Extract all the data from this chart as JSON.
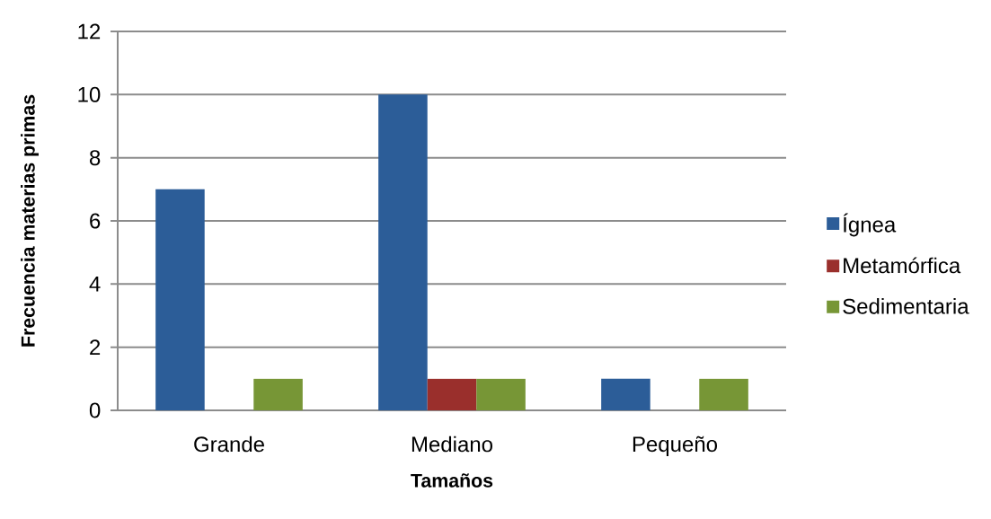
{
  "chart_data": {
    "type": "bar",
    "xlabel": "Tamaños",
    "ylabel": "Frecuencia materias primas",
    "categories": [
      "Grande",
      "Mediano",
      "Pequeño"
    ],
    "series": [
      {
        "name": "Ígnea",
        "color": "#2c5d98",
        "values": [
          7,
          10,
          1
        ]
      },
      {
        "name": "Metamórfica",
        "color": "#9a2f2c",
        "values": [
          null,
          1,
          null
        ]
      },
      {
        "name": "Sedimentaria",
        "color": "#779636",
        "values": [
          1,
          1,
          1
        ]
      }
    ],
    "ylim": [
      0,
      12
    ],
    "yticks": [
      0,
      2,
      4,
      6,
      8,
      10,
      12
    ],
    "grid": "y",
    "legend": "right"
  }
}
